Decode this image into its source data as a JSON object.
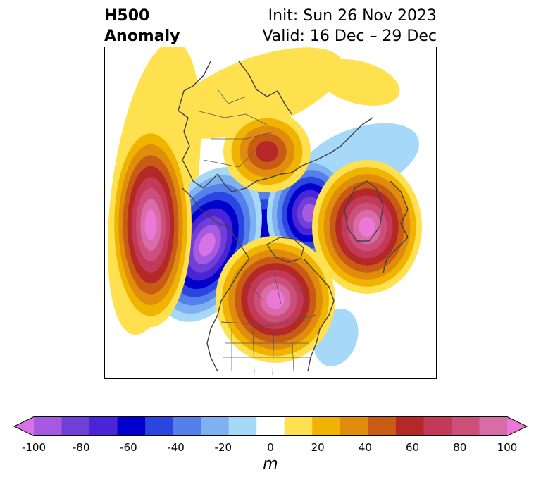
{
  "title": {
    "line1": "H500",
    "line2": "Anomaly"
  },
  "subtitle": {
    "init": "Init: Sun 26 Nov 2023",
    "valid": "Valid: 16 Dec – 29 Dec"
  },
  "colorbar": {
    "label": "m",
    "ticks": [
      "-100",
      "-80",
      "-60",
      "-40",
      "-20",
      "0",
      "20",
      "40",
      "60",
      "80",
      "100"
    ],
    "colors": [
      "#d873e6",
      "#a55ae0",
      "#6f3fd8",
      "#4a24d5",
      "#0000cc",
      "#2a45e0",
      "#5580ea",
      "#7db1f2",
      "#a6d8f8",
      "#ffffff",
      "#ffe04f",
      "#f0b400",
      "#e08c0c",
      "#c85c14",
      "#b42828",
      "#c23a58",
      "#cc4e7a",
      "#d86ca6",
      "#ea78d8"
    ]
  },
  "colors": {
    "pos1": "#ffe04f",
    "pos2": "#f0b400",
    "pos3": "#e08c0c",
    "pos4": "#c85c14",
    "pos5": "#b42828",
    "pos6": "#c23a58",
    "pos7": "#cc4e7a",
    "pos8": "#d86ca6",
    "pos9": "#ea78d8",
    "neg1": "#a6d8f8",
    "neg2": "#7db1f2",
    "neg3": "#5580ea",
    "neg4": "#2a45e0",
    "neg5": "#0000cc",
    "neg6": "#4a24d5",
    "neg7": "#6f3fd8",
    "neg8": "#a55ae0",
    "neg9": "#d873e6",
    "coast": "#404040",
    "border": "#555555"
  }
}
